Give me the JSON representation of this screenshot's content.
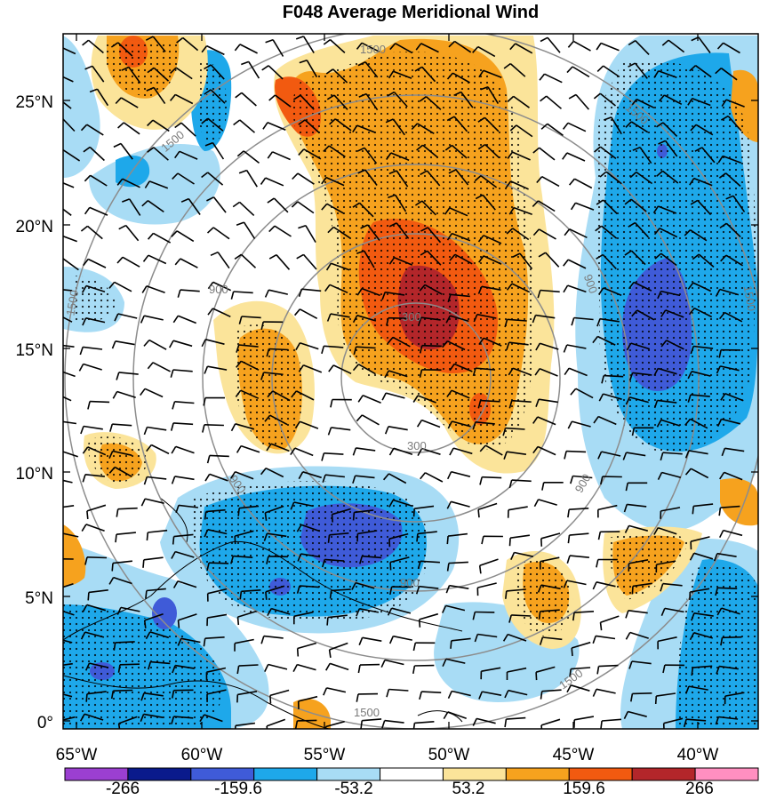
{
  "title": "F048 Average Meridional Wind",
  "x_ticks": [
    "65°W",
    "60°W",
    "55°W",
    "50°W",
    "45°W",
    "40°W"
  ],
  "y_ticks": [
    "0°",
    "5°N",
    "10°N",
    "15°N",
    "20°N",
    "25°N"
  ],
  "ring_labels": [
    "300",
    "300",
    "900",
    "900",
    "900",
    "900",
    "900",
    "1500",
    "1500",
    "1500",
    "1500",
    "1500",
    "1500",
    "1500"
  ],
  "colorbar": {
    "colors": [
      "#9b3fd1",
      "#0a1a8c",
      "#3f5bd8",
      "#1ea8ea",
      "#a8dcf5",
      "#ffffff",
      "#fbe49a",
      "#f6a21e",
      "#f25a10",
      "#b3262a",
      "#ff8fc0"
    ],
    "labels": [
      "-266",
      "-159.6",
      "-53.2",
      "53.2",
      "159.6",
      "266"
    ]
  },
  "colors": {
    "pos_light": "#fbe49a",
    "pos_mid": "#f6a21e",
    "pos_strong": "#f25a10",
    "pos_max": "#b3262a",
    "neg_light": "#a8dcf5",
    "neg_mid": "#1ea8ea",
    "neg_strong": "#3f5bd8",
    "neg_max": "#0a1a8c",
    "ring": "#8c8c8c"
  }
}
